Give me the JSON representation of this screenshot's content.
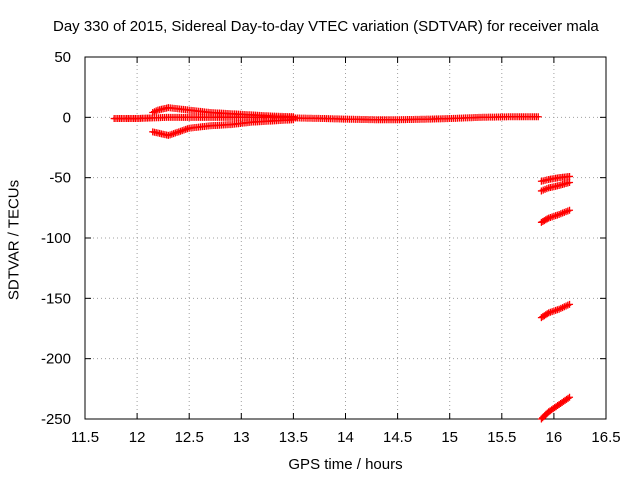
{
  "chart_data": {
    "type": "scatter",
    "title": "Day 330 of 2015, Sidereal Day-to-day VTEC variation (SDTVAR) for receiver mala",
    "xlabel": "GPS time / hours",
    "ylabel": "SDTVAR / TECUs",
    "xlim": [
      11.5,
      16.5
    ],
    "ylim": [
      -250,
      50
    ],
    "xticks": [
      11.5,
      12,
      12.5,
      13,
      13.5,
      14,
      14.5,
      15,
      15.5,
      16,
      16.5
    ],
    "xtick_labels": [
      "11.5",
      "12",
      "12.5",
      "13",
      "13.5",
      "14",
      "14.5",
      "15",
      "15.5",
      "16",
      "16.5"
    ],
    "yticks": [
      50,
      0,
      -50,
      -100,
      -150,
      -200,
      -250
    ],
    "ytick_labels": [
      "50",
      "0",
      "-50",
      "-100",
      "-150",
      "-200",
      "-250"
    ],
    "grid": true,
    "marker": "plus",
    "color": "#ff0000",
    "series": [
      {
        "name": "main-trace",
        "x": [
          11.78,
          11.9,
          12.0,
          12.05,
          12.15,
          12.3,
          12.5,
          12.7,
          12.9,
          13.1,
          13.3,
          13.5,
          13.8,
          14.0,
          14.3,
          14.5,
          14.8,
          15.0,
          15.3,
          15.6,
          15.85
        ],
        "y": [
          -1,
          -1,
          -1,
          -0.8,
          -0.5,
          0,
          0,
          0,
          0,
          0,
          0,
          -0.5,
          -1,
          -1.5,
          -2,
          -2,
          -1.5,
          -1,
          0,
          0.5,
          0.5
        ]
      },
      {
        "name": "upper-branch",
        "x": [
          12.15,
          12.2,
          12.3,
          12.5,
          12.7,
          12.9,
          13.1,
          13.3,
          13.5
        ],
        "y": [
          4,
          6,
          8,
          6,
          4,
          3,
          2,
          1,
          0.5
        ]
      },
      {
        "name": "lower-branch",
        "x": [
          12.15,
          12.2,
          12.3,
          12.5,
          12.7,
          12.9,
          13.1,
          13.3,
          13.5
        ],
        "y": [
          -12,
          -13,
          -15,
          -9,
          -7,
          -6,
          -4,
          -3,
          -2
        ]
      },
      {
        "name": "late-arc-1",
        "x": [
          15.88,
          15.95,
          16.05,
          16.15
        ],
        "y": [
          -53,
          -51.5,
          -50,
          -49
        ]
      },
      {
        "name": "late-arc-2",
        "x": [
          15.88,
          15.95,
          16.05,
          16.15
        ],
        "y": [
          -61,
          -58.5,
          -56.5,
          -54
        ]
      },
      {
        "name": "late-arc-3",
        "x": [
          15.88,
          15.95,
          16.05,
          16.15
        ],
        "y": [
          -87,
          -83.5,
          -80.5,
          -77
        ]
      },
      {
        "name": "late-arc-4",
        "x": [
          15.88,
          15.95,
          16.05,
          16.15
        ],
        "y": [
          -166,
          -162,
          -159,
          -155
        ]
      },
      {
        "name": "late-arc-5",
        "x": [
          15.88,
          15.95,
          16.05,
          16.15
        ],
        "y": [
          -250,
          -244,
          -238,
          -232
        ]
      }
    ]
  }
}
